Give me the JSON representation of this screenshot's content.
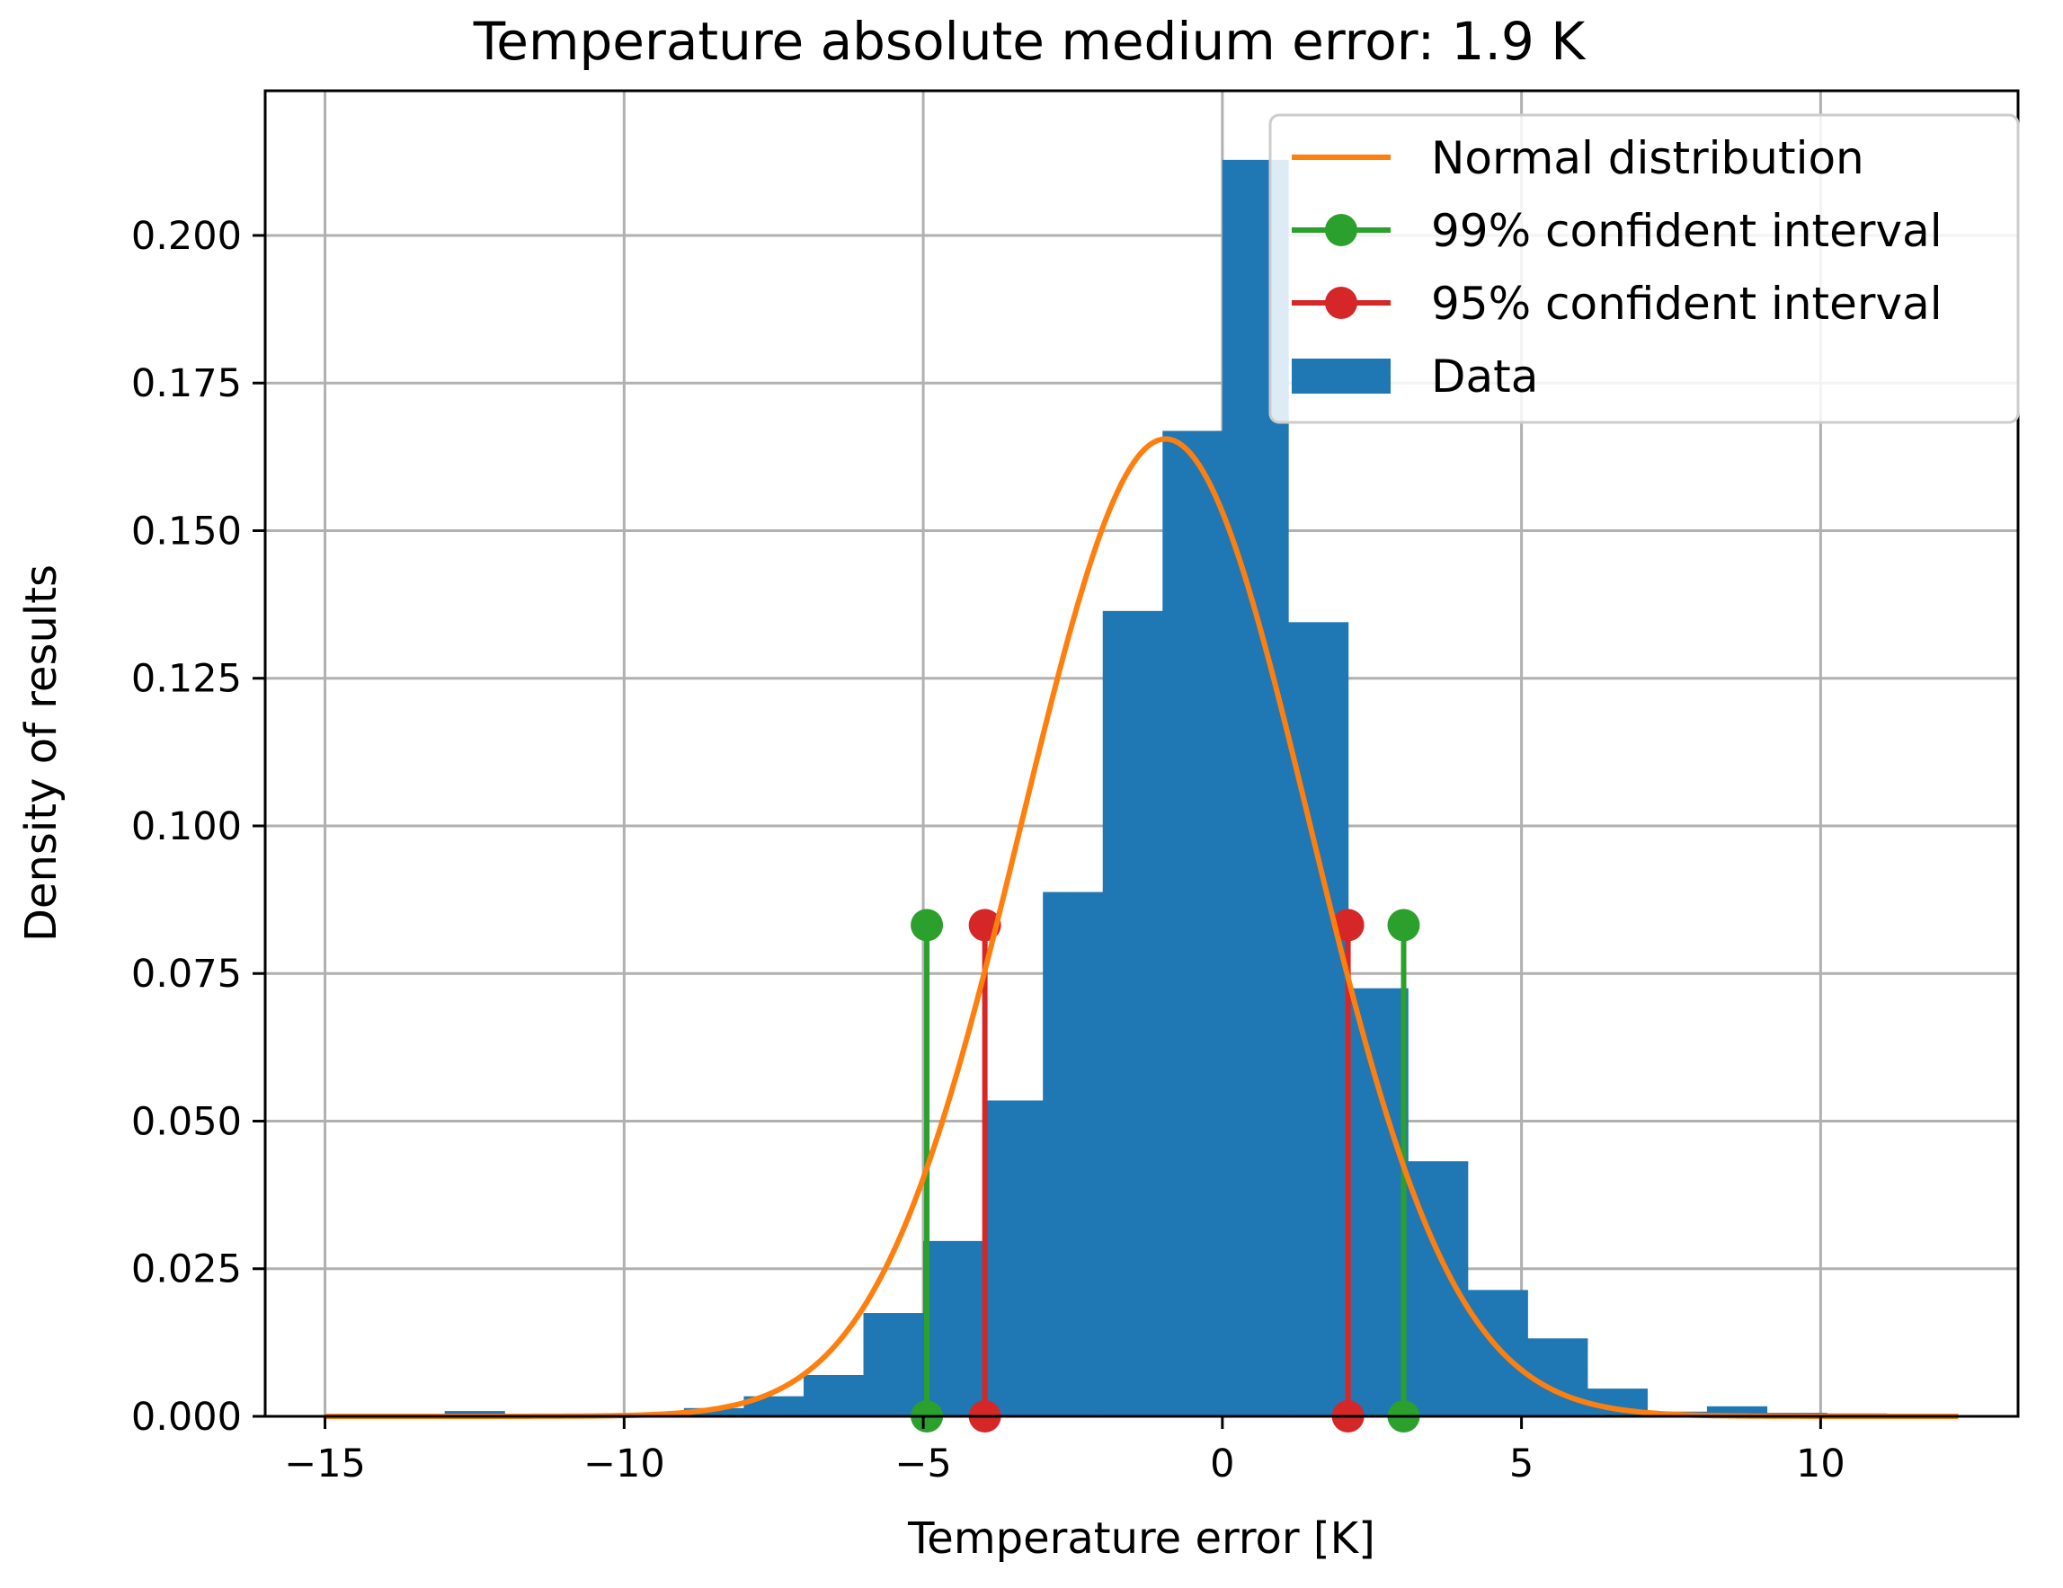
{
  "chart_data": {
    "type": "bar",
    "title": "Temperature absolute medium error: 1.9 K",
    "xlabel": "Temperature error [K]",
    "ylabel": "Density of results",
    "xlim": [
      -16.0,
      13.3
    ],
    "ylim": [
      0.0,
      0.2245
    ],
    "grid": true,
    "legend_position": "top-right",
    "x_ticks": [
      -15,
      -10,
      -5,
      0,
      5,
      10
    ],
    "x_tick_labels": [
      "−15",
      "−10",
      "−5",
      "0",
      "5",
      "10"
    ],
    "y_ticks": [
      0.0,
      0.025,
      0.05,
      0.075,
      0.1,
      0.125,
      0.15,
      0.175,
      0.2
    ],
    "y_tick_labels": [
      "0.000",
      "0.025",
      "0.050",
      "0.075",
      "0.100",
      "0.125",
      "0.150",
      "0.175",
      "0.200"
    ],
    "histogram": {
      "name": "Data",
      "color": "#1f77b4",
      "bin_edges": [
        -15.0,
        -14.0,
        -13.0,
        -12.0,
        -11.0,
        -10.0,
        -9.0,
        -8.0,
        -7.0,
        -6.0,
        -5.0,
        -4.0,
        -3.0,
        -2.0,
        -1.0,
        0.0,
        1.1,
        2.1,
        3.1,
        4.1,
        5.1,
        6.1,
        7.1,
        8.1,
        9.1,
        10.1,
        11.1,
        12.1
      ],
      "densities": [
        0.0003,
        0.0003,
        0.0009,
        0.0003,
        0.0003,
        0.0006,
        0.0014,
        0.0034,
        0.007,
        0.0175,
        0.0297,
        0.0535,
        0.0888,
        0.1364,
        0.1669,
        0.2128,
        0.1345,
        0.0725,
        0.0432,
        0.0214,
        0.0132,
        0.0047,
        0.0008,
        0.0017,
        0.0006,
        0.0005,
        0.0003
      ]
    },
    "normal_distribution": {
      "name": "Normal distribution",
      "color": "#ff7f0e",
      "mean": -0.95,
      "std": 2.41,
      "x_range": [
        -15.0,
        12.3
      ]
    },
    "intervals": [
      {
        "name": "99% confident interval",
        "color": "#2ca02c",
        "x": [
          -4.94,
          3.03
        ],
        "y": 0.0832
      },
      {
        "name": "95% confident interval",
        "color": "#d62728",
        "x": [
          -3.97,
          2.1
        ],
        "y": 0.0832
      }
    ],
    "legend": [
      "Normal distribution",
      "99% confident interval",
      "95% confident interval",
      "Data"
    ]
  }
}
